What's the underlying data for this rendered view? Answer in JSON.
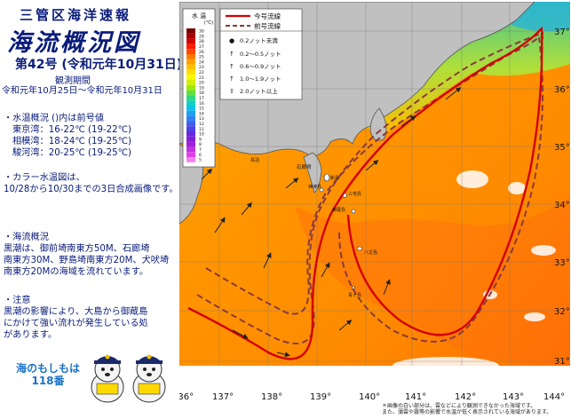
{
  "header": {
    "org": "三管区海洋速報",
    "title": "海流概況図",
    "issue": "第42号 (令和元年10月31日)",
    "period_label": "観測期間",
    "period": "令和元年10月25日～令和元年10月31日"
  },
  "temp_summary": {
    "heading": "・水温概況 ()内は前号値",
    "rows": [
      "東京湾：16-22℃ (19-22℃)",
      "相模湾：18-24℃ (19-25℃)",
      "駿河湾：20-25℃ (19-25℃)"
    ]
  },
  "image_note": {
    "line1": "・カラー水温図は、",
    "line2": "10/28から10/30までの3日合成画像です。"
  },
  "current_summary": {
    "heading": "・海流概況",
    "lines": [
      "黒潮は、御前埼南東方50M、石廊埼",
      "南東方30M、野島埼南東方20M、犬吠埼",
      "南東方20Mの海域を流れています。"
    ]
  },
  "notice": {
    "heading": "・注意",
    "lines": [
      "黒潮の影響により、大島から御蔵島",
      "にかけて強い流れが発生している処",
      "があります。"
    ]
  },
  "mascot": {
    "line1": "海のもしもは",
    "line2": "118番"
  },
  "colorbar": {
    "title": "水 温",
    "unit": "(℃)",
    "ticks": [
      "30",
      "29",
      "28",
      "27",
      "26",
      "25",
      "24",
      "23",
      "22",
      "21",
      "20",
      "19",
      "18",
      "17",
      "16",
      "15",
      "14",
      "13",
      "12",
      "11",
      "10",
      "9",
      "8",
      "7",
      "6",
      "5"
    ],
    "colors": [
      "#7a0000",
      "#a80000",
      "#d40000",
      "#ff1a00",
      "#ff4a00",
      "#ff7a00",
      "#ffa000",
      "#ffc000",
      "#ffe000",
      "#f8f800",
      "#d0f000",
      "#a0e800",
      "#60e040",
      "#30d880",
      "#10d0c0",
      "#10c0e8",
      "#20a0f0",
      "#3080f0",
      "#4060f0",
      "#5040e8",
      "#6828e0",
      "#8020d8",
      "#a020d8",
      "#c030e0",
      "#e040e8",
      "#f080f0"
    ]
  },
  "legend": {
    "current_label": "今号流線",
    "previous_label": "前号流線",
    "speeds": [
      {
        "symbol": "●",
        "label": "0.2ノット未満"
      },
      {
        "symbol": "↑",
        "label": "0.2～0.5ノット"
      },
      {
        "symbol": "↑",
        "label": "0.6～0.9ノット"
      },
      {
        "symbol": "↑",
        "label": "1.0～1.9ノット"
      },
      {
        "symbol": "⇧",
        "label": "2.0ノット以上"
      }
    ]
  },
  "map": {
    "lat_labels": [
      "37°",
      "36°",
      "35°",
      "34°",
      "33°",
      "32°",
      "31°"
    ],
    "lon_labels": [
      "136°",
      "137°",
      "138°",
      "139°",
      "140°",
      "141°",
      "142°",
      "143°",
      "144°"
    ],
    "places": [
      "石廊埼",
      "神津島",
      "新島",
      "三宅島",
      "御蔵島",
      "八丈島",
      "青ヶ島",
      "鳥羽"
    ],
    "colors": {
      "sea_warm": "#ff9a00",
      "sea_hot": "#ff7a10",
      "land": "#c0c0c0",
      "current": "#d40000"
    }
  },
  "footnote": {
    "line1": "＊画像の白い部分は、雲などにより観測できなかった海域です。",
    "line2": "また、薄雲や霧等の影響で水温が低く表示されている海域があります。"
  }
}
